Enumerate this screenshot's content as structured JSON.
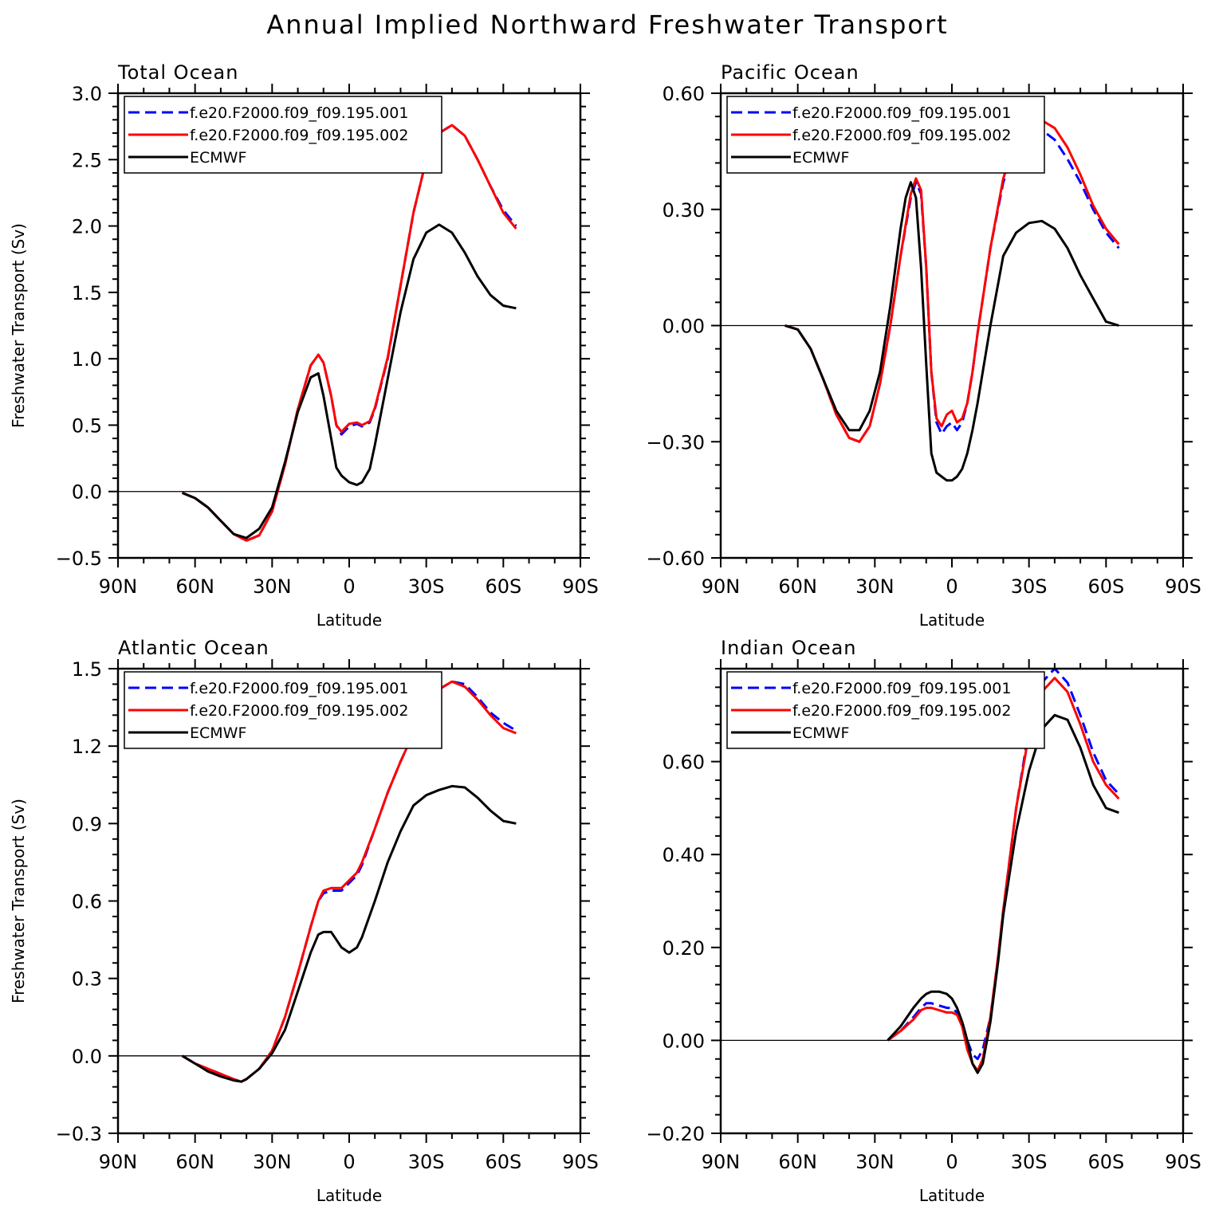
{
  "title": "Annual Implied Northward Freshwater Transport",
  "colors": {
    "series1": "#0000ff",
    "series2": "#ff0000",
    "series3": "#000000"
  },
  "chart_data": [
    {
      "type": "line",
      "title": "Total Ocean",
      "xlabel": "Latitude",
      "ylabel": "Freshwater Transport (Sv)",
      "xlim": [
        90,
        -90
      ],
      "ylim": [
        -0.5,
        3.0
      ],
      "xticks": [
        90,
        60,
        30,
        0,
        -30,
        -60,
        -90
      ],
      "xtick_labels": [
        "90N",
        "60N",
        "30N",
        "0",
        "30S",
        "60S",
        "90S"
      ],
      "yticks": [
        -0.5,
        0.0,
        0.5,
        1.0,
        1.5,
        2.0,
        2.5,
        3.0
      ],
      "ytick_labels": [
        "−0.5",
        "0.0",
        "0.5",
        "1.0",
        "1.5",
        "2.0",
        "2.5",
        "3.0"
      ],
      "legend_position": "top-left",
      "series": [
        {
          "name": "f.e20.F2000.f09_f09.195.001",
          "style": "dashed",
          "x": [
            65,
            60,
            55,
            50,
            45,
            40,
            35,
            30,
            25,
            20,
            15,
            12,
            10,
            7,
            5,
            3,
            0,
            -3,
            -5,
            -8,
            -10,
            -15,
            -20,
            -25,
            -30,
            -35,
            -40,
            -45,
            -50,
            -55,
            -60,
            -65
          ],
          "y": [
            -0.01,
            -0.05,
            -0.12,
            -0.22,
            -0.32,
            -0.37,
            -0.33,
            -0.15,
            0.2,
            0.62,
            0.95,
            1.03,
            0.97,
            0.72,
            0.5,
            0.43,
            0.49,
            0.51,
            0.49,
            0.52,
            0.62,
            1.0,
            1.55,
            2.1,
            2.5,
            2.7,
            2.76,
            2.68,
            2.5,
            2.3,
            2.12,
            2.0
          ]
        },
        {
          "name": "f.e20.F2000.f09_f09.195.002",
          "style": "solid",
          "x": [
            65,
            60,
            55,
            50,
            45,
            40,
            35,
            30,
            25,
            20,
            15,
            12,
            10,
            7,
            5,
            3,
            0,
            -3,
            -5,
            -8,
            -10,
            -15,
            -20,
            -25,
            -30,
            -35,
            -40,
            -45,
            -50,
            -55,
            -60,
            -65
          ],
          "y": [
            -0.01,
            -0.05,
            -0.12,
            -0.22,
            -0.32,
            -0.37,
            -0.33,
            -0.15,
            0.2,
            0.62,
            0.95,
            1.03,
            0.97,
            0.72,
            0.5,
            0.45,
            0.51,
            0.52,
            0.5,
            0.53,
            0.63,
            1.01,
            1.55,
            2.1,
            2.5,
            2.7,
            2.76,
            2.68,
            2.5,
            2.3,
            2.1,
            1.98
          ]
        },
        {
          "name": "ECMWF",
          "style": "solid",
          "x": [
            65,
            60,
            55,
            50,
            45,
            40,
            35,
            30,
            25,
            20,
            15,
            12,
            10,
            7,
            5,
            3,
            0,
            -3,
            -5,
            -8,
            -10,
            -15,
            -20,
            -25,
            -30,
            -35,
            -40,
            -45,
            -50,
            -55,
            -60,
            -65
          ],
          "y": [
            -0.01,
            -0.05,
            -0.12,
            -0.22,
            -0.32,
            -0.35,
            -0.28,
            -0.12,
            0.22,
            0.6,
            0.86,
            0.89,
            0.72,
            0.4,
            0.18,
            0.12,
            0.07,
            0.05,
            0.07,
            0.17,
            0.35,
            0.85,
            1.35,
            1.75,
            1.95,
            2.01,
            1.95,
            1.8,
            1.62,
            1.48,
            1.4,
            1.38
          ]
        }
      ]
    },
    {
      "type": "line",
      "title": "Pacific Ocean",
      "xlabel": "Latitude",
      "ylabel": "",
      "xlim": [
        90,
        -90
      ],
      "ylim": [
        -0.6,
        0.6
      ],
      "xticks": [
        90,
        60,
        30,
        0,
        -30,
        -60,
        -90
      ],
      "xtick_labels": [
        "90N",
        "60N",
        "30N",
        "0",
        "30S",
        "60S",
        "90S"
      ],
      "yticks": [
        -0.6,
        -0.3,
        0.0,
        0.3,
        0.6
      ],
      "ytick_labels": [
        "−0.60",
        "−0.30",
        "0.00",
        "0.30",
        "0.60"
      ],
      "legend_position": "top-left",
      "series": [
        {
          "name": "f.e20.F2000.f09_f09.195.001",
          "style": "dashed",
          "x": [
            65,
            60,
            55,
            50,
            45,
            40,
            36,
            32,
            28,
            24,
            20,
            16,
            14,
            12,
            10,
            8,
            6,
            4,
            2,
            0,
            -2,
            -4,
            -6,
            -8,
            -10,
            -15,
            -20,
            -25,
            -30,
            -35,
            -40,
            -45,
            -50,
            -55,
            -60,
            -65
          ],
          "y": [
            0.0,
            -0.01,
            -0.06,
            -0.14,
            -0.23,
            -0.29,
            -0.3,
            -0.26,
            -0.15,
            0.0,
            0.18,
            0.33,
            0.37,
            0.34,
            0.15,
            -0.12,
            -0.25,
            -0.28,
            -0.26,
            -0.25,
            -0.27,
            -0.25,
            -0.2,
            -0.12,
            -0.02,
            0.2,
            0.37,
            0.46,
            0.5,
            0.505,
            0.48,
            0.43,
            0.37,
            0.3,
            0.24,
            0.2
          ]
        },
        {
          "name": "f.e20.F2000.f09_f09.195.002",
          "style": "solid",
          "x": [
            65,
            60,
            55,
            50,
            45,
            40,
            36,
            32,
            28,
            24,
            20,
            16,
            14,
            12,
            10,
            8,
            6,
            4,
            2,
            0,
            -2,
            -4,
            -6,
            -8,
            -10,
            -15,
            -20,
            -25,
            -30,
            -35,
            -40,
            -45,
            -50,
            -55,
            -60,
            -65
          ],
          "y": [
            0.0,
            -0.01,
            -0.06,
            -0.14,
            -0.23,
            -0.29,
            -0.3,
            -0.26,
            -0.15,
            0.0,
            0.18,
            0.34,
            0.38,
            0.35,
            0.15,
            -0.12,
            -0.24,
            -0.26,
            -0.23,
            -0.22,
            -0.25,
            -0.24,
            -0.2,
            -0.12,
            -0.02,
            0.2,
            0.38,
            0.48,
            0.52,
            0.53,
            0.51,
            0.46,
            0.39,
            0.31,
            0.25,
            0.21
          ]
        },
        {
          "name": "ECMWF",
          "style": "solid",
          "x": [
            65,
            60,
            55,
            50,
            45,
            40,
            36,
            32,
            28,
            24,
            20,
            18,
            16,
            14,
            12,
            10,
            8,
            6,
            4,
            2,
            0,
            -2,
            -4,
            -6,
            -8,
            -10,
            -15,
            -20,
            -25,
            -30,
            -35,
            -40,
            -45,
            -50,
            -55,
            -60,
            -65
          ],
          "y": [
            0.0,
            -0.01,
            -0.06,
            -0.14,
            -0.22,
            -0.27,
            -0.27,
            -0.22,
            -0.12,
            0.05,
            0.25,
            0.33,
            0.37,
            0.33,
            0.15,
            -0.1,
            -0.33,
            -0.38,
            -0.39,
            -0.4,
            -0.4,
            -0.39,
            -0.37,
            -0.33,
            -0.27,
            -0.2,
            0.0,
            0.18,
            0.24,
            0.265,
            0.27,
            0.25,
            0.2,
            0.13,
            0.07,
            0.01,
            0.0
          ]
        }
      ]
    },
    {
      "type": "line",
      "title": "Atlantic Ocean",
      "xlabel": "Latitude",
      "ylabel": "Freshwater Transport (Sv)",
      "xlim": [
        90,
        -90
      ],
      "ylim": [
        -0.3,
        1.5
      ],
      "xticks": [
        90,
        60,
        30,
        0,
        -30,
        -60,
        -90
      ],
      "xtick_labels": [
        "90N",
        "60N",
        "30N",
        "0",
        "30S",
        "60S",
        "90S"
      ],
      "yticks": [
        -0.3,
        0.0,
        0.3,
        0.6,
        0.9,
        1.2,
        1.5
      ],
      "ytick_labels": [
        "−0.3",
        "0.0",
        "0.3",
        "0.6",
        "0.9",
        "1.2",
        "1.5"
      ],
      "legend_position": "top-left",
      "series": [
        {
          "name": "f.e20.F2000.f09_f09.195.001",
          "style": "dashed",
          "x": [
            65,
            60,
            55,
            50,
            45,
            42,
            40,
            35,
            30,
            25,
            20,
            15,
            12,
            10,
            7,
            5,
            3,
            0,
            -3,
            -5,
            -10,
            -15,
            -20,
            -25,
            -30,
            -35,
            -40,
            -45,
            -50,
            -55,
            -60,
            -65
          ],
          "y": [
            0.0,
            -0.03,
            -0.05,
            -0.07,
            -0.09,
            -0.1,
            -0.09,
            -0.05,
            0.02,
            0.15,
            0.32,
            0.5,
            0.6,
            0.63,
            0.64,
            0.64,
            0.64,
            0.67,
            0.7,
            0.74,
            0.88,
            1.02,
            1.14,
            1.25,
            1.35,
            1.42,
            1.45,
            1.44,
            1.39,
            1.33,
            1.29,
            1.26
          ]
        },
        {
          "name": "f.e20.F2000.f09_f09.195.002",
          "style": "solid",
          "x": [
            65,
            60,
            55,
            50,
            45,
            42,
            40,
            35,
            30,
            25,
            20,
            15,
            12,
            10,
            7,
            5,
            3,
            0,
            -3,
            -5,
            -10,
            -15,
            -20,
            -25,
            -30,
            -35,
            -40,
            -45,
            -50,
            -55,
            -60,
            -65
          ],
          "y": [
            0.0,
            -0.03,
            -0.05,
            -0.07,
            -0.09,
            -0.1,
            -0.09,
            -0.05,
            0.02,
            0.15,
            0.32,
            0.5,
            0.6,
            0.64,
            0.65,
            0.65,
            0.65,
            0.68,
            0.71,
            0.75,
            0.88,
            1.02,
            1.14,
            1.25,
            1.35,
            1.42,
            1.45,
            1.43,
            1.38,
            1.32,
            1.27,
            1.25
          ]
        },
        {
          "name": "ECMWF",
          "style": "solid",
          "x": [
            65,
            60,
            55,
            50,
            45,
            42,
            40,
            35,
            30,
            25,
            20,
            15,
            12,
            10,
            7,
            5,
            3,
            0,
            -3,
            -5,
            -10,
            -15,
            -20,
            -25,
            -30,
            -35,
            -40,
            -45,
            -50,
            -55,
            -60,
            -65
          ],
          "y": [
            0.0,
            -0.03,
            -0.06,
            -0.08,
            -0.095,
            -0.1,
            -0.09,
            -0.05,
            0.01,
            0.1,
            0.25,
            0.4,
            0.47,
            0.48,
            0.48,
            0.45,
            0.42,
            0.4,
            0.42,
            0.46,
            0.6,
            0.75,
            0.87,
            0.97,
            1.01,
            1.03,
            1.045,
            1.04,
            1.0,
            0.95,
            0.91,
            0.9
          ]
        }
      ]
    },
    {
      "type": "line",
      "title": "Indian Ocean",
      "xlabel": "Latitude",
      "ylabel": "",
      "xlim": [
        90,
        -90
      ],
      "ylim": [
        -0.2,
        0.8
      ],
      "xticks": [
        90,
        60,
        30,
        0,
        -30,
        -60,
        -90
      ],
      "xtick_labels": [
        "90N",
        "60N",
        "30N",
        "0",
        "30S",
        "60S",
        "90S"
      ],
      "yticks": [
        -0.2,
        0.0,
        0.2,
        0.4,
        0.6
      ],
      "ytick_labels": [
        "−0.20",
        "0.00",
        "0.20",
        "0.40",
        "0.60"
      ],
      "legend_position": "top-left",
      "series": [
        {
          "name": "f.e20.F2000.f09_f09.195.001",
          "style": "dashed",
          "x": [
            25,
            20,
            15,
            12,
            10,
            8,
            5,
            2,
            0,
            -2,
            -4,
            -6,
            -8,
            -10,
            -12,
            -15,
            -18,
            -20,
            -25,
            -30,
            -35,
            -40,
            -45,
            -50,
            -55,
            -60,
            -65
          ],
          "y": [
            0.0,
            0.02,
            0.05,
            0.07,
            0.08,
            0.08,
            0.075,
            0.07,
            0.07,
            0.06,
            0.04,
            0.0,
            -0.03,
            -0.04,
            -0.02,
            0.05,
            0.18,
            0.28,
            0.5,
            0.67,
            0.77,
            0.8,
            0.77,
            0.7,
            0.62,
            0.56,
            0.53
          ]
        },
        {
          "name": "f.e20.F2000.f09_f09.195.002",
          "style": "solid",
          "x": [
            25,
            20,
            15,
            12,
            10,
            8,
            5,
            2,
            0,
            -2,
            -4,
            -6,
            -8,
            -10,
            -12,
            -15,
            -18,
            -20,
            -25,
            -30,
            -35,
            -40,
            -45,
            -50,
            -55,
            -60,
            -65
          ],
          "y": [
            0.0,
            0.02,
            0.045,
            0.065,
            0.07,
            0.07,
            0.065,
            0.06,
            0.06,
            0.055,
            0.03,
            -0.02,
            -0.05,
            -0.065,
            -0.04,
            0.05,
            0.18,
            0.28,
            0.5,
            0.66,
            0.75,
            0.78,
            0.75,
            0.68,
            0.6,
            0.55,
            0.52
          ]
        },
        {
          "name": "ECMWF",
          "style": "solid",
          "x": [
            25,
            20,
            15,
            12,
            10,
            8,
            5,
            2,
            0,
            -2,
            -4,
            -6,
            -8,
            -10,
            -12,
            -15,
            -18,
            -20,
            -25,
            -30,
            -35,
            -40,
            -45,
            -50,
            -55,
            -60,
            -65
          ],
          "y": [
            0.0,
            0.03,
            0.07,
            0.09,
            0.1,
            0.105,
            0.105,
            0.1,
            0.09,
            0.07,
            0.04,
            0.0,
            -0.05,
            -0.07,
            -0.05,
            0.04,
            0.17,
            0.27,
            0.45,
            0.58,
            0.67,
            0.7,
            0.69,
            0.63,
            0.55,
            0.5,
            0.49
          ]
        }
      ]
    }
  ]
}
